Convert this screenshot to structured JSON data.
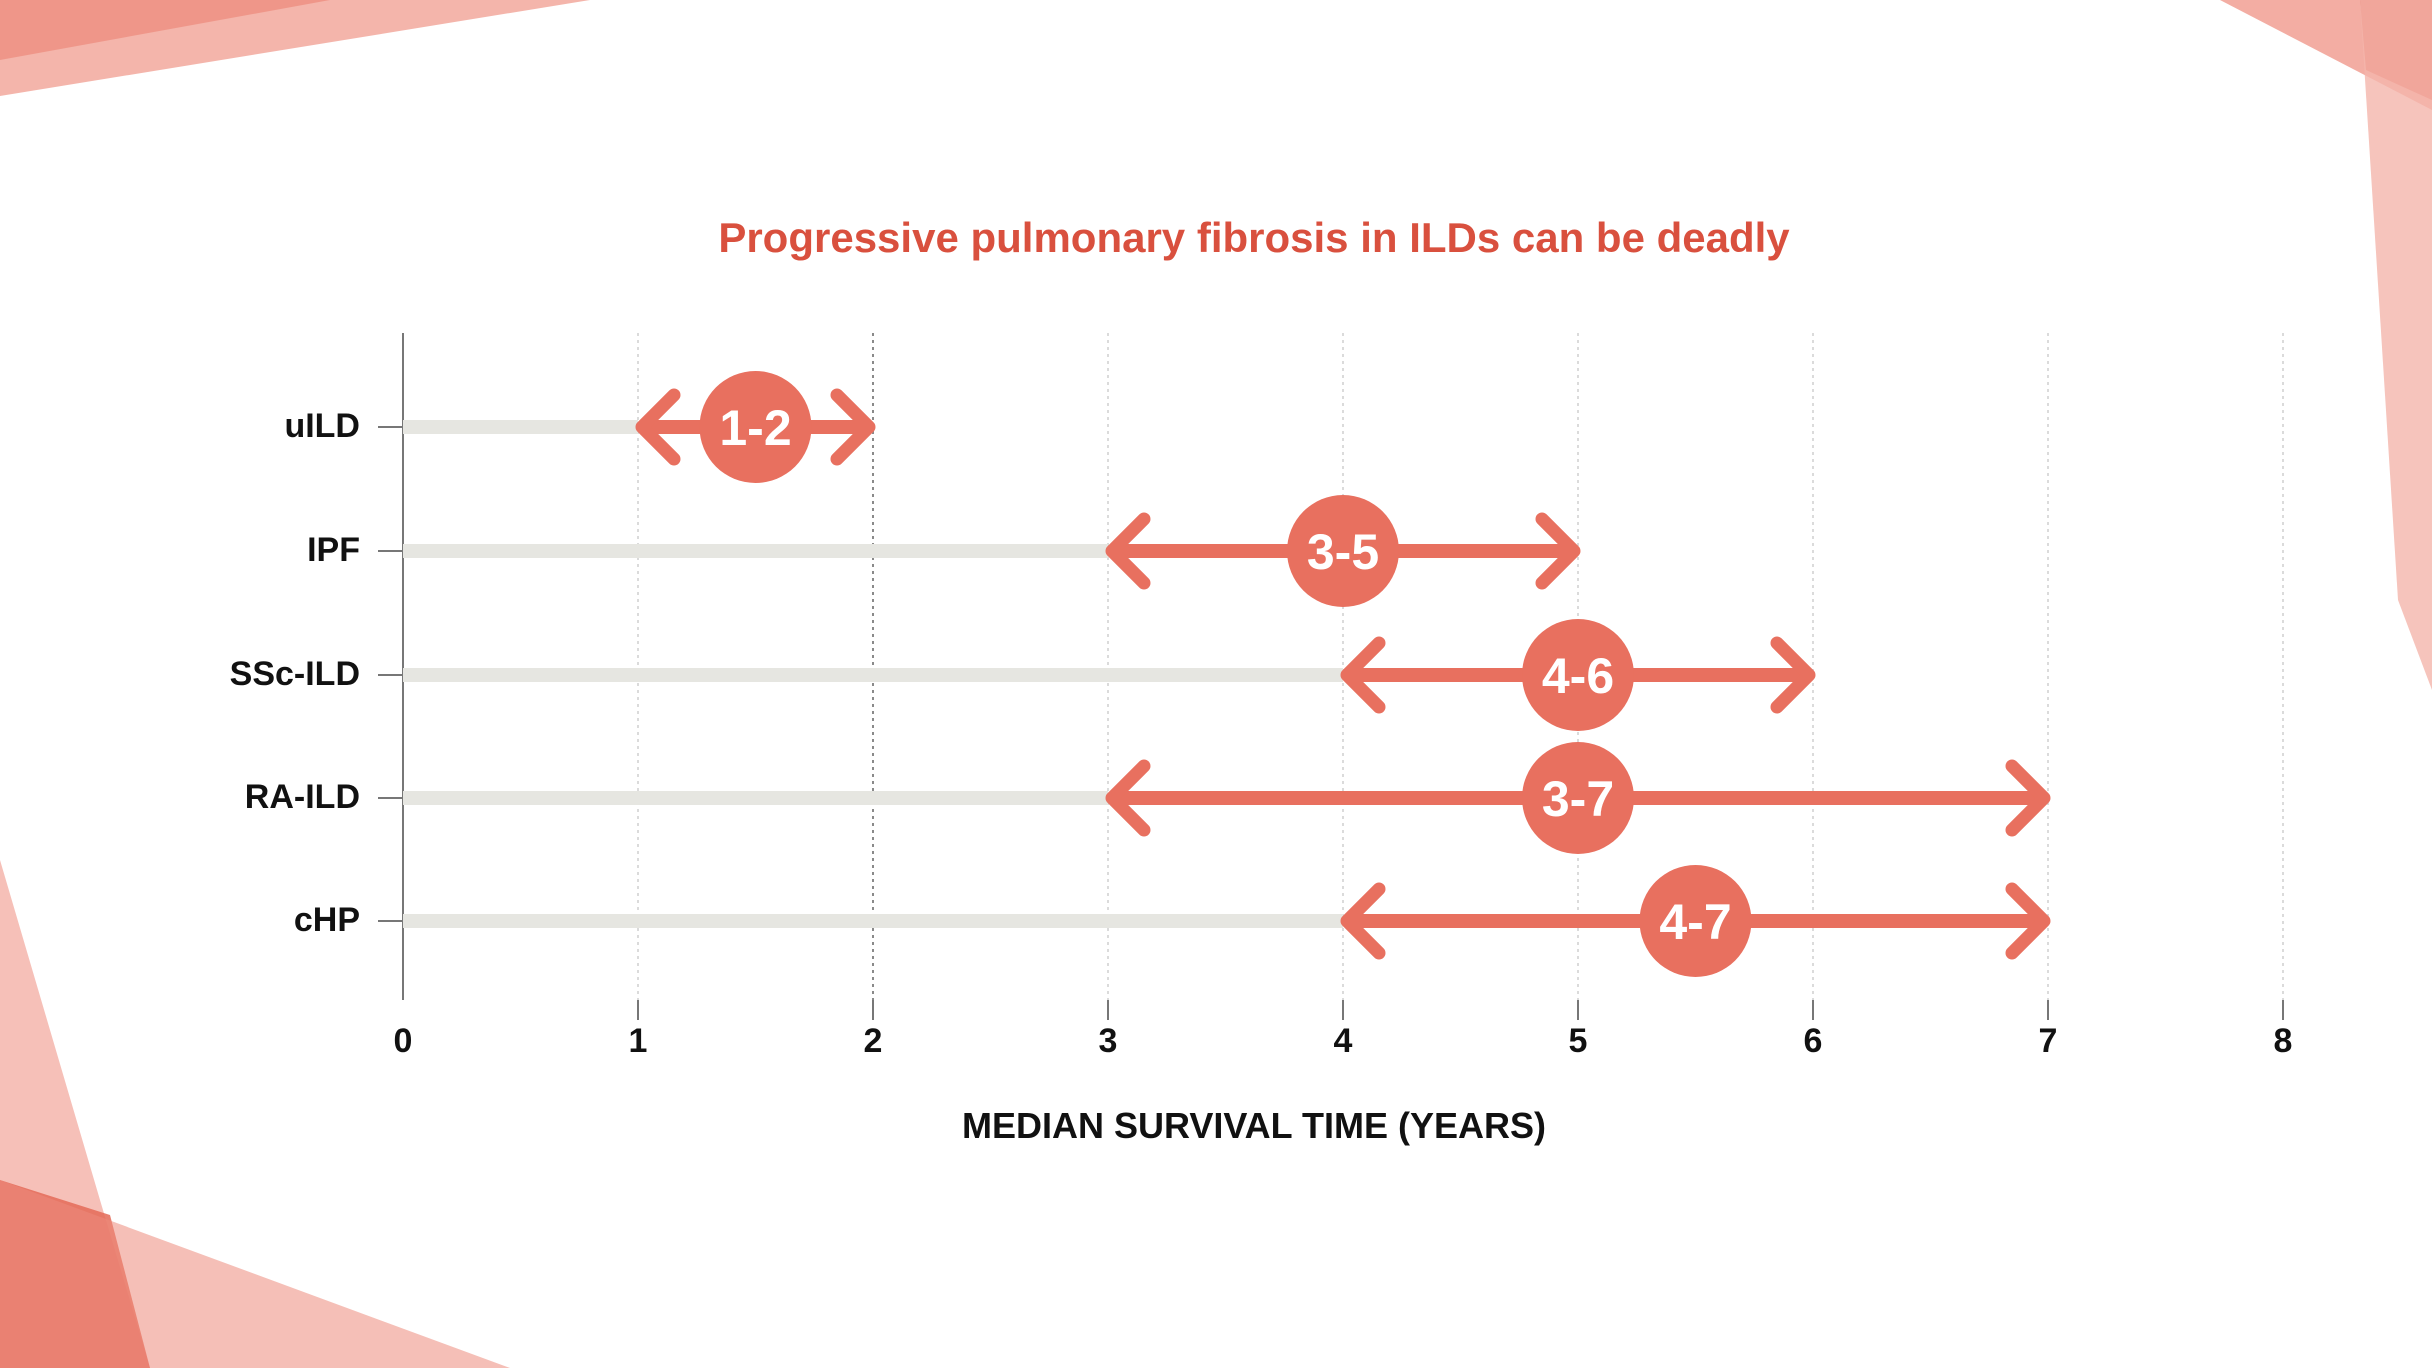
{
  "colors": {
    "accent": "#E8705F",
    "accent_light": "#F2A89C",
    "accent_dark": "#D9503E",
    "track": "#E6E6E1",
    "text": "#111111",
    "grid": "#BDBDBD"
  },
  "chart_data": {
    "type": "range",
    "title": "Progressive pulmonary fibrosis in ILDs can be deadly",
    "xlabel": "MEDIAN SURVIVAL TIME (YEARS)",
    "ylabel": "",
    "xlim": [
      0,
      8
    ],
    "xticks": [
      "0",
      "1",
      "2",
      "3",
      "4",
      "5",
      "6",
      "7",
      "8"
    ],
    "grid": true,
    "categories": [
      "uILD",
      "IPF",
      "SSc-ILD",
      "RA-ILD",
      "cHP"
    ],
    "ranges": [
      {
        "name": "uILD",
        "low": 1,
        "high": 2,
        "label": "1-2"
      },
      {
        "name": "IPF",
        "low": 3,
        "high": 5,
        "label": "3-5"
      },
      {
        "name": "SSc-ILD",
        "low": 4,
        "high": 6,
        "label": "4-6"
      },
      {
        "name": "RA-ILD",
        "low": 3,
        "high": 7,
        "label": "3-7"
      },
      {
        "name": "cHP",
        "low": 4,
        "high": 7,
        "label": "4-7"
      }
    ]
  }
}
